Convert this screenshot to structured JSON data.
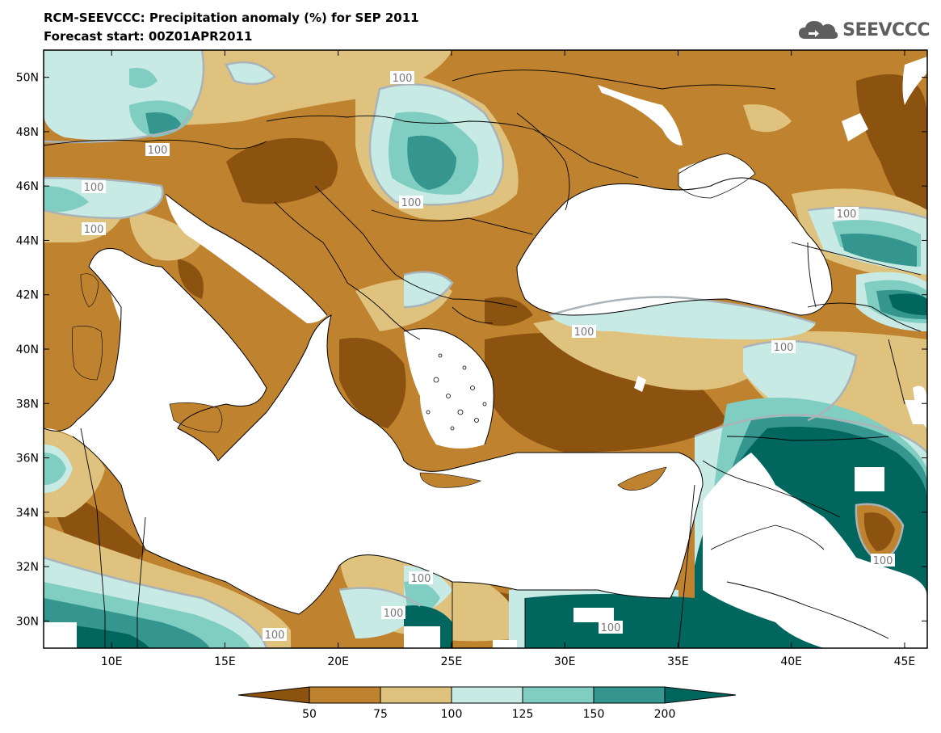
{
  "header": {
    "title": "RCM-SEEVCCC: Precipitation anomaly (%) for SEP 2011",
    "subtitle": "Forecast start: 00Z01APR2011"
  },
  "logo": {
    "text": "SEEVCCC",
    "icon": "cloud-icon",
    "color": "#5e5e5e"
  },
  "map": {
    "lat_labels": [
      "50N",
      "48N",
      "46N",
      "44N",
      "42N",
      "40N",
      "38N",
      "36N",
      "34N",
      "32N",
      "30N"
    ],
    "lon_labels": [
      "10E",
      "15E",
      "20E",
      "25E",
      "30E",
      "35E",
      "40E",
      "45E"
    ],
    "lat_range": [
      29,
      51
    ],
    "lon_range": [
      7,
      46
    ],
    "contour_labels": [
      "100",
      "100",
      "100",
      "100",
      "100",
      "100",
      "100",
      "100",
      "100",
      "100",
      "100",
      "100",
      "100"
    ]
  },
  "colorbar": {
    "labels": [
      "50",
      "75",
      "100",
      "125",
      "150",
      "200"
    ],
    "colors": {
      "lt50": "#8c520f",
      "c50_75": "#bf822f",
      "c75_100": "#dfc27e",
      "c100_125": "#c7eae5",
      "c125_150": "#80cdc1",
      "c150_200": "#35968f",
      "gt200": "#01665e"
    }
  }
}
